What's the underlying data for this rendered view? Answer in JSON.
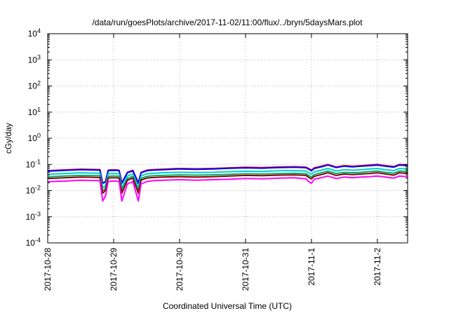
{
  "chart_data": {
    "type": "line",
    "title": "/data/run/goesPlots/archive/2017-11-02/11:00/flux/../bryn/5daysMars.plot",
    "xlabel": "Coordinated Universal Time (UTC)",
    "ylabel": "cGy/day",
    "yscale": "log",
    "ylim": [
      0.0001,
      10000
    ],
    "xlim": [
      "2017-10-28T00:00",
      "2017-11-02T11:00"
    ],
    "grid": true,
    "y_ticks": [
      {
        "value": 0.0001,
        "base": "10",
        "exp": "-4"
      },
      {
        "value": 0.001,
        "base": "10",
        "exp": "-3"
      },
      {
        "value": 0.01,
        "base": "10",
        "exp": "-2"
      },
      {
        "value": 0.1,
        "base": "10",
        "exp": "-1"
      },
      {
        "value": 1,
        "base": "10",
        "exp": "0"
      },
      {
        "value": 10,
        "base": "10",
        "exp": "1"
      },
      {
        "value": 100,
        "base": "10",
        "exp": "2"
      },
      {
        "value": 1000,
        "base": "10",
        "exp": "3"
      },
      {
        "value": 10000,
        "base": "10",
        "exp": "4"
      }
    ],
    "x_ticks": [
      {
        "date": "2017-10-28T00:00",
        "label": "2017-10-28"
      },
      {
        "date": "2017-10-29T00:00",
        "label": "2017-10-29"
      },
      {
        "date": "2017-10-30T00:00",
        "label": "2017-10-30"
      },
      {
        "date": "2017-10-31T00:00",
        "label": "2017-10-31"
      },
      {
        "date": "2017-11-01T00:00",
        "label": "2017-11-1"
      },
      {
        "date": "2017-11-02T00:00",
        "label": "2017-11-2"
      }
    ],
    "x": [
      "2017-10-28T00:00",
      "2017-10-28T06:00",
      "2017-10-28T12:00",
      "2017-10-28T18:00",
      "2017-10-28T19:00",
      "2017-10-28T20:00",
      "2017-10-28T21:00",
      "2017-10-28T22:00",
      "2017-10-28T23:00",
      "2017-10-29T01:00",
      "2017-10-29T02:00",
      "2017-10-29T03:00",
      "2017-10-29T05:00",
      "2017-10-29T07:00",
      "2017-10-29T09:00",
      "2017-10-29T10:00",
      "2017-10-29T12:00",
      "2017-10-29T13:00",
      "2017-10-29T15:00",
      "2017-10-29T18:00",
      "2017-10-30T00:00",
      "2017-10-30T06:00",
      "2017-10-30T12:00",
      "2017-10-30T18:00",
      "2017-10-31T00:00",
      "2017-10-31T06:00",
      "2017-10-31T12:00",
      "2017-10-31T18:00",
      "2017-10-31T22:00",
      "2017-10-31T23:00",
      "2017-11-01T00:00",
      "2017-11-01T01:00",
      "2017-11-01T04:00",
      "2017-11-01T06:00",
      "2017-11-01T09:00",
      "2017-11-01T12:00",
      "2017-11-01T15:00",
      "2017-11-01T18:00",
      "2017-11-01T21:00",
      "2017-11-02T00:00",
      "2017-11-02T03:00",
      "2017-11-02T06:00",
      "2017-11-02T08:00",
      "2017-11-02T11:00"
    ],
    "series": [
      {
        "color": "#ff0000",
        "values": [
          0.058,
          0.062,
          0.066,
          0.064,
          0.064,
          0.02,
          0.022,
          0.06,
          0.062,
          0.062,
          0.06,
          0.02,
          0.05,
          0.06,
          0.02,
          0.05,
          0.06,
          0.062,
          0.064,
          0.066,
          0.07,
          0.068,
          0.07,
          0.074,
          0.078,
          0.076,
          0.08,
          0.082,
          0.079,
          0.07,
          0.06,
          0.074,
          0.088,
          0.1,
          0.08,
          0.09,
          0.085,
          0.09,
          0.095,
          0.1,
          0.09,
          0.083,
          0.1,
          0.095
        ]
      },
      {
        "color": "#0000ff",
        "values": [
          0.055,
          0.059,
          0.063,
          0.061,
          0.061,
          0.019,
          0.021,
          0.057,
          0.059,
          0.059,
          0.057,
          0.019,
          0.048,
          0.057,
          0.019,
          0.048,
          0.057,
          0.059,
          0.061,
          0.063,
          0.067,
          0.065,
          0.067,
          0.071,
          0.074,
          0.072,
          0.076,
          0.078,
          0.075,
          0.066,
          0.057,
          0.07,
          0.083,
          0.095,
          0.076,
          0.086,
          0.081,
          0.086,
          0.09,
          0.095,
          0.086,
          0.079,
          0.095,
          0.09
        ]
      },
      {
        "color": "#00cccc",
        "values": [
          0.042,
          0.045,
          0.048,
          0.046,
          0.046,
          0.013,
          0.015,
          0.044,
          0.045,
          0.045,
          0.044,
          0.013,
          0.036,
          0.044,
          0.013,
          0.036,
          0.044,
          0.045,
          0.046,
          0.048,
          0.05,
          0.049,
          0.05,
          0.053,
          0.055,
          0.054,
          0.057,
          0.058,
          0.056,
          0.048,
          0.042,
          0.052,
          0.062,
          0.07,
          0.056,
          0.063,
          0.06,
          0.063,
          0.067,
          0.07,
          0.063,
          0.058,
          0.07,
          0.066
        ]
      },
      {
        "color": "#00aa66",
        "values": [
          0.034,
          0.036,
          0.038,
          0.037,
          0.037,
          0.01,
          0.012,
          0.035,
          0.036,
          0.036,
          0.035,
          0.01,
          0.029,
          0.035,
          0.01,
          0.029,
          0.035,
          0.036,
          0.037,
          0.038,
          0.04,
          0.039,
          0.04,
          0.042,
          0.044,
          0.043,
          0.045,
          0.046,
          0.044,
          0.038,
          0.033,
          0.041,
          0.049,
          0.056,
          0.045,
          0.05,
          0.048,
          0.05,
          0.053,
          0.056,
          0.05,
          0.046,
          0.056,
          0.053
        ]
      },
      {
        "color": "#880000",
        "values": [
          0.029,
          0.031,
          0.033,
          0.032,
          0.032,
          0.008,
          0.01,
          0.03,
          0.031,
          0.031,
          0.03,
          0.008,
          0.025,
          0.03,
          0.008,
          0.025,
          0.03,
          0.031,
          0.032,
          0.033,
          0.034,
          0.033,
          0.034,
          0.036,
          0.038,
          0.037,
          0.039,
          0.04,
          0.038,
          0.032,
          0.028,
          0.035,
          0.042,
          0.048,
          0.038,
          0.043,
          0.041,
          0.043,
          0.045,
          0.048,
          0.043,
          0.039,
          0.048,
          0.045
        ]
      },
      {
        "color": "#ff00ff",
        "values": [
          0.022,
          0.023,
          0.025,
          0.024,
          0.024,
          0.004,
          0.006,
          0.022,
          0.023,
          0.023,
          0.022,
          0.004,
          0.018,
          0.022,
          0.004,
          0.018,
          0.022,
          0.023,
          0.024,
          0.025,
          0.026,
          0.025,
          0.026,
          0.027,
          0.029,
          0.028,
          0.03,
          0.031,
          0.028,
          0.022,
          0.019,
          0.027,
          0.032,
          0.036,
          0.029,
          0.033,
          0.031,
          0.033,
          0.034,
          0.036,
          0.033,
          0.03,
          0.036,
          0.034
        ]
      }
    ]
  }
}
